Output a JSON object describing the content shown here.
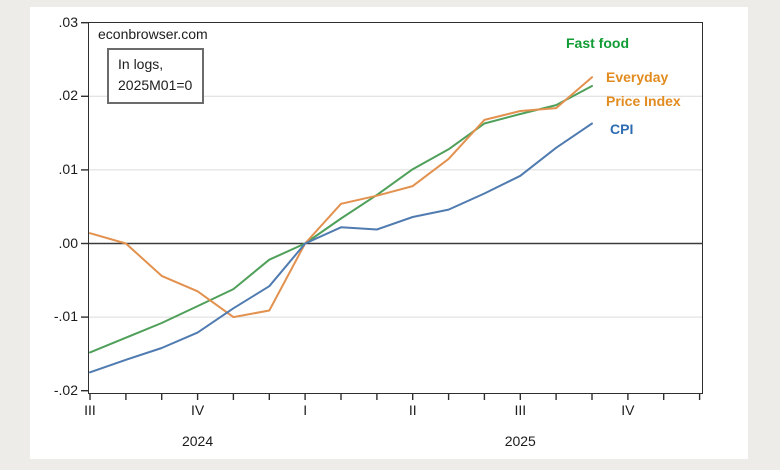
{
  "header": {
    "site": "econbrowser.com"
  },
  "note": {
    "line1": "In logs,",
    "line2": "2025M01=0"
  },
  "legend": {
    "fast_food": "Fast food",
    "epi_line1": "Everyday",
    "epi_line2": "Price Index",
    "cpi": "CPI"
  },
  "colors": {
    "fast_food_line": "#4fa05a",
    "epi_line": "#e2914e",
    "cpi_line": "#4f7bb0",
    "fast_food_label": "#119c35",
    "epi_label": "#e28b1f",
    "cpi_label": "#2e6cb2",
    "grid": "#dcdcdc",
    "zero_line": "#3c3c3c",
    "axis": "#2f2f2f",
    "page_bg": "#eeece9",
    "figure_bg": "#ffffff"
  },
  "chart_data": {
    "type": "line",
    "title": "econbrowser.com",
    "annotation": "In logs, 2025M01=0",
    "grid": "horizontal",
    "legend_position": "right-inside",
    "ylim": [
      -0.0205,
      0.0301
    ],
    "x": [
      "2024-07",
      "2024-08",
      "2024-09",
      "2024-10",
      "2024-11",
      "2024-12",
      "2025-01",
      "2025-02",
      "2025-03",
      "2025-04",
      "2025-05",
      "2025-06",
      "2025-07",
      "2025-08",
      "2025-09"
    ],
    "series": [
      {
        "name": "Fast food",
        "key": "fast_food",
        "values": [
          -0.0148,
          -0.0128,
          -0.0108,
          -0.0085,
          -0.0062,
          -0.0022,
          0.0,
          0.0034,
          0.0066,
          0.0101,
          0.0128,
          0.0163,
          0.0176,
          0.0188,
          0.0214
        ]
      },
      {
        "name": "Everyday Price Index",
        "key": "epi",
        "values": [
          0.0014,
          0.0,
          -0.0044,
          -0.0065,
          -0.01,
          -0.0091,
          0.0,
          0.0054,
          0.0065,
          0.0078,
          0.0115,
          0.0168,
          0.018,
          0.0184,
          0.0226
        ]
      },
      {
        "name": "CPI",
        "key": "cpi",
        "values": [
          -0.0175,
          -0.0158,
          -0.0142,
          -0.0121,
          -0.0088,
          -0.0058,
          0.0,
          0.0022,
          0.0019,
          0.0036,
          0.0046,
          0.0068,
          0.0092,
          0.013,
          0.0163
        ]
      }
    ],
    "y_ticks": [
      {
        "label": ".03",
        "value": 0.03,
        "grid": false
      },
      {
        "label": ".02",
        "value": 0.02,
        "grid": true
      },
      {
        "label": ".01",
        "value": 0.01,
        "grid": true
      },
      {
        "label": ".00",
        "value": 0.0,
        "grid": false
      },
      {
        "label": "-.01",
        "value": -0.01,
        "grid": true
      },
      {
        "label": "-.02",
        "value": -0.02,
        "grid": false
      }
    ],
    "x_quarter_labels": [
      {
        "label": "III",
        "month_index": 0
      },
      {
        "label": "IV",
        "month_index": 3
      },
      {
        "label": "I",
        "month_index": 6
      },
      {
        "label": "II",
        "month_index": 9
      },
      {
        "label": "III",
        "month_index": 12
      },
      {
        "label": "IV",
        "month_index": 15
      }
    ],
    "x_year_labels": [
      {
        "label": "2024",
        "month_index": 3
      },
      {
        "label": "2025",
        "month_index": 12
      }
    ],
    "x_minor_tick_count": 18
  }
}
